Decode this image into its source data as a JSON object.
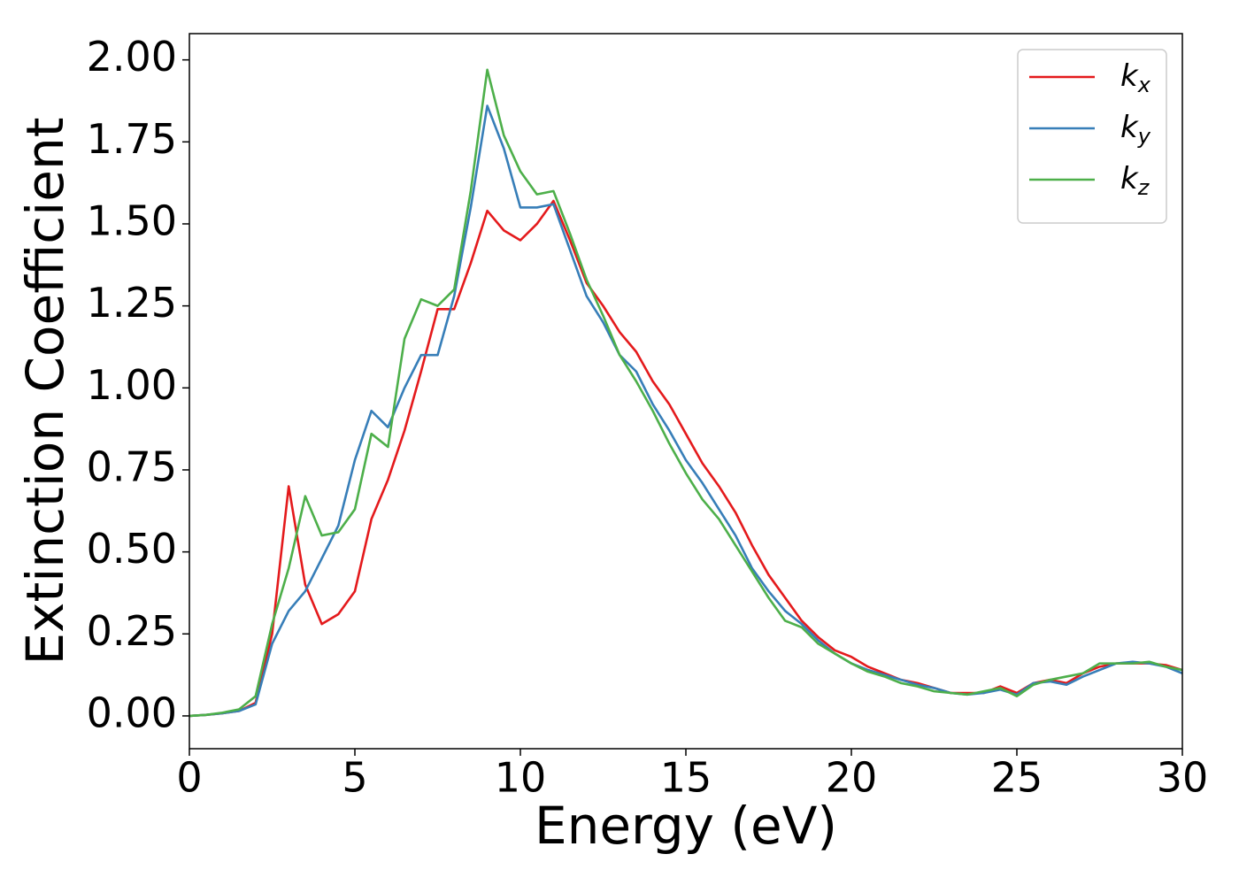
{
  "chart_data": {
    "type": "line",
    "xlabel": "Energy (eV)",
    "ylabel": "Extinction Coefficient",
    "xlim": [
      0,
      30
    ],
    "ylim": [
      -0.1,
      2.08
    ],
    "xticks": [
      0,
      5,
      10,
      15,
      20,
      25,
      30
    ],
    "yticks": [
      {
        "value": 0,
        "label": "0.00"
      },
      {
        "value": 0.25,
        "label": "0.25"
      },
      {
        "value": 0.5,
        "label": "0.50"
      },
      {
        "value": 0.75,
        "label": "0.75"
      },
      {
        "value": 1,
        "label": "1.00"
      },
      {
        "value": 1.25,
        "label": "1.25"
      },
      {
        "value": 1.5,
        "label": "1.50"
      },
      {
        "value": 1.75,
        "label": "1.75"
      },
      {
        "value": 2,
        "label": "2.00"
      }
    ],
    "legend": "upper right",
    "x": [
      0,
      0.5,
      1,
      1.5,
      2,
      2.5,
      3,
      3.5,
      4,
      4.5,
      5,
      5.5,
      6,
      6.5,
      7,
      7.5,
      8,
      8.5,
      9,
      9.5,
      10,
      10.5,
      11,
      11.5,
      12,
      12.5,
      13,
      13.5,
      14,
      14.5,
      15,
      15.5,
      16,
      16.5,
      17,
      17.5,
      18,
      18.5,
      19,
      19.5,
      20,
      20.5,
      21,
      21.5,
      22,
      22.5,
      23,
      23.5,
      24,
      24.5,
      25,
      25.5,
      26,
      26.5,
      27,
      27.5,
      28,
      28.5,
      29,
      29.5,
      30
    ],
    "series": [
      {
        "name": "kx",
        "color": "#e41a1c",
        "values": [
          0,
          0.003,
          0.008,
          0.015,
          0.04,
          0.25,
          0.7,
          0.4,
          0.28,
          0.31,
          0.38,
          0.6,
          0.72,
          0.87,
          1.05,
          1.24,
          1.24,
          1.38,
          1.54,
          1.48,
          1.45,
          1.5,
          1.57,
          1.45,
          1.32,
          1.25,
          1.17,
          1.11,
          1.02,
          0.95,
          0.86,
          0.77,
          0.7,
          0.62,
          0.52,
          0.43,
          0.36,
          0.29,
          0.24,
          0.2,
          0.18,
          0.15,
          0.13,
          0.11,
          0.1,
          0.085,
          0.07,
          0.07,
          0.07,
          0.09,
          0.07,
          0.1,
          0.11,
          0.1,
          0.13,
          0.15,
          0.16,
          0.16,
          0.16,
          0.155,
          0.14
        ]
      },
      {
        "name": "ky",
        "color": "#377eb8",
        "values": [
          0,
          0.003,
          0.008,
          0.015,
          0.035,
          0.22,
          0.32,
          0.38,
          0.48,
          0.58,
          0.78,
          0.93,
          0.88,
          1.0,
          1.1,
          1.1,
          1.28,
          1.55,
          1.86,
          1.73,
          1.55,
          1.55,
          1.56,
          1.42,
          1.28,
          1.2,
          1.1,
          1.05,
          0.95,
          0.87,
          0.78,
          0.71,
          0.63,
          0.55,
          0.45,
          0.38,
          0.32,
          0.28,
          0.23,
          0.19,
          0.16,
          0.14,
          0.125,
          0.11,
          0.095,
          0.085,
          0.07,
          0.065,
          0.07,
          0.08,
          0.065,
          0.1,
          0.105,
          0.095,
          0.12,
          0.14,
          0.16,
          0.165,
          0.16,
          0.15,
          0.13
        ]
      },
      {
        "name": "kz",
        "color": "#4daf4a",
        "values": [
          0,
          0.003,
          0.01,
          0.02,
          0.06,
          0.28,
          0.45,
          0.67,
          0.55,
          0.56,
          0.63,
          0.86,
          0.82,
          1.15,
          1.27,
          1.25,
          1.3,
          1.6,
          1.97,
          1.77,
          1.66,
          1.59,
          1.6,
          1.47,
          1.33,
          1.22,
          1.1,
          1.02,
          0.93,
          0.83,
          0.74,
          0.66,
          0.6,
          0.52,
          0.44,
          0.36,
          0.29,
          0.27,
          0.22,
          0.19,
          0.16,
          0.135,
          0.12,
          0.1,
          0.09,
          0.075,
          0.07,
          0.065,
          0.075,
          0.085,
          0.06,
          0.095,
          0.11,
          0.12,
          0.13,
          0.16,
          0.16,
          0.16,
          0.165,
          0.15,
          0.14
        ]
      }
    ]
  }
}
